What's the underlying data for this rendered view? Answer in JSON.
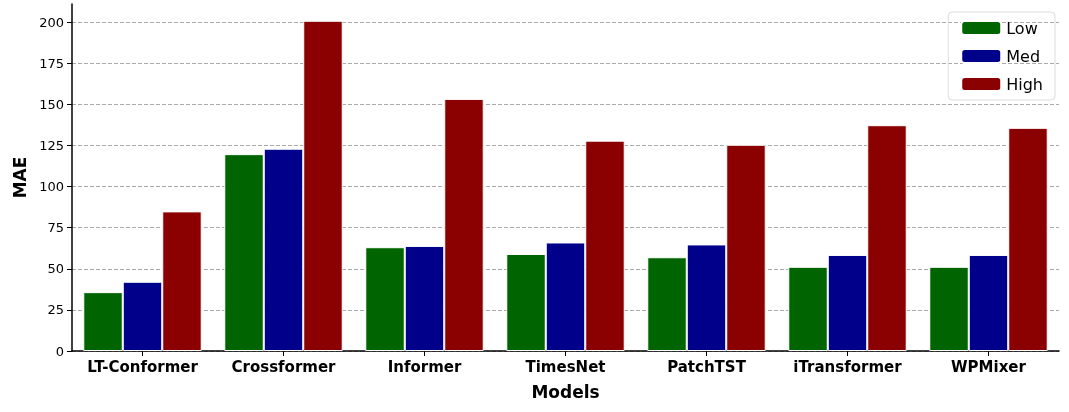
{
  "chart_data": {
    "type": "bar",
    "xlabel": "Models",
    "ylabel": "MAE",
    "categories": [
      "LT-Conformer",
      "Crossformer",
      "Informer",
      "TimesNet",
      "PatchTST",
      "iTransformer",
      "WPMixer"
    ],
    "series": [
      {
        "name": "Low",
        "color": "#006400",
        "values": [
          35.8,
          119.7,
          63.1,
          59,
          57,
          51.2,
          51.2
        ]
      },
      {
        "name": "Med",
        "color": "#00008b",
        "values": [
          42.1,
          123,
          63.9,
          66,
          64.8,
          58.4,
          58.4
        ]
      },
      {
        "name": "High",
        "color": "#8b0000",
        "values": [
          84.9,
          200.8,
          153.3,
          127.9,
          125.4,
          137.3,
          135.7
        ]
      }
    ],
    "ylim": [
      0,
      211
    ],
    "yticks": [
      0,
      25,
      50,
      75,
      100,
      125,
      150,
      175,
      200
    ],
    "grid": "y",
    "legend": "top right"
  }
}
